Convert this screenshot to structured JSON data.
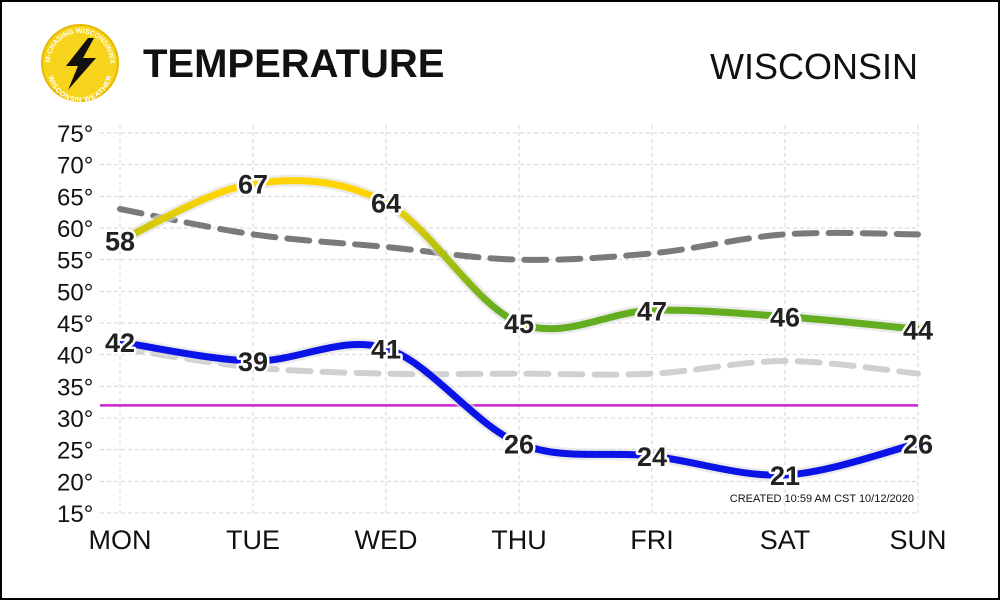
{
  "chart_data": {
    "type": "line",
    "title": "TEMPERATURE",
    "region": "WISCONSIN",
    "footnote": "CREATED 10:59 AM CST 10/12/2020",
    "logo": {
      "top": "STORM-CHASING WISCONSINWX.COM",
      "bottom": "WISCONSIN WEATHER"
    },
    "categories": [
      "MON",
      "TUE",
      "WED",
      "THU",
      "FRI",
      "SAT",
      "SUN"
    ],
    "ylim": [
      15,
      75
    ],
    "yticks": [
      {
        "value": 15,
        "label": "15°"
      },
      {
        "value": 20,
        "label": "20°"
      },
      {
        "value": 25,
        "label": "25°"
      },
      {
        "value": 30,
        "label": "30°"
      },
      {
        "value": 35,
        "label": "35°"
      },
      {
        "value": 40,
        "label": "40°"
      },
      {
        "value": 45,
        "label": "45°"
      },
      {
        "value": 50,
        "label": "50°"
      },
      {
        "value": 55,
        "label": "55°"
      },
      {
        "value": 60,
        "label": "60°"
      },
      {
        "value": 65,
        "label": "65°"
      },
      {
        "value": 70,
        "label": "70°"
      },
      {
        "value": 75,
        "label": "75°"
      }
    ],
    "grid": true,
    "reference_line": {
      "value": 32,
      "color": "#cc22cc"
    },
    "series": [
      {
        "color": "#7a7a7a",
        "dashed": true,
        "values": [
          63,
          59,
          57,
          55,
          56,
          59,
          59
        ]
      },
      {
        "color": "#d0d0d0",
        "dashed": true,
        "values": [
          41,
          38,
          37,
          37,
          37,
          39,
          37
        ]
      },
      {
        "color": "#ffd400",
        "gradient": [
          "#ffd400",
          "#62ad20"
        ],
        "labels": true,
        "values": [
          58,
          67,
          64,
          45,
          47,
          46,
          44
        ]
      },
      {
        "color": "#0a14e6",
        "labels": true,
        "values": [
          42,
          39,
          41,
          26,
          24,
          21,
          26
        ]
      }
    ]
  }
}
